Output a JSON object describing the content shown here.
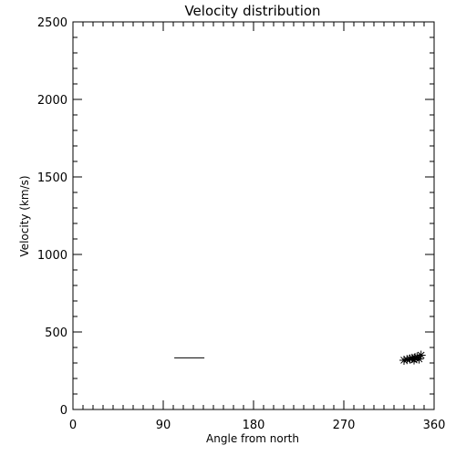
{
  "chart_data": {
    "type": "scatter",
    "title": "Velocity distribution",
    "xlabel": "Angle from north",
    "ylabel": "Velocity (km/s)",
    "xlim": [
      0,
      360
    ],
    "ylim": [
      0,
      2500
    ],
    "xticks": [
      0,
      90,
      180,
      270,
      360
    ],
    "yticks": [
      0,
      500,
      1000,
      1500,
      2000,
      2500
    ],
    "grid": false,
    "series": [
      {
        "marker": "asterisk",
        "points": [
          [
            330,
            318
          ],
          [
            333,
            322
          ],
          [
            336,
            326
          ],
          [
            338,
            330
          ],
          [
            341,
            334
          ],
          [
            343,
            338
          ],
          [
            345,
            326
          ],
          [
            347,
            350
          ],
          [
            340,
            320
          ]
        ]
      },
      {
        "marker": "line",
        "points": [
          [
            101,
            333
          ],
          [
            131,
            333
          ]
        ]
      }
    ]
  }
}
